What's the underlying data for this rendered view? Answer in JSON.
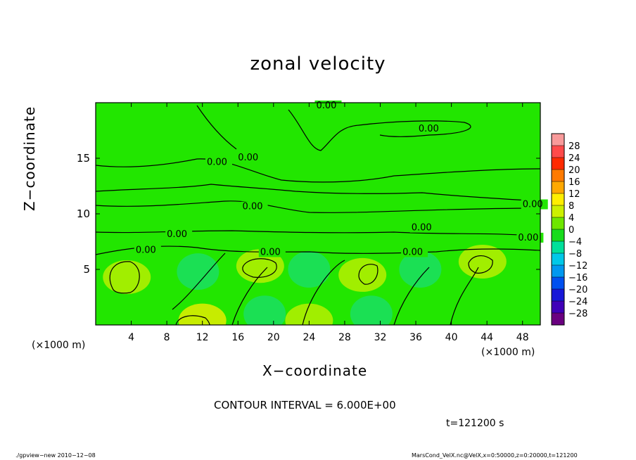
{
  "title": "zonal velocity",
  "x_label": "X−coordinate",
  "y_label": "Z−coordinate",
  "x_unit_left": "(×1000 m)",
  "x_unit_right": "(×1000 m)",
  "contour_interval": "CONTOUR INTERVAL = 6.000E+00",
  "time_label": "t=121200 s",
  "footer_left": "./gpview−new  2010−12−08",
  "footer_right": "MarsCond_VelX.nc@VelX,x=0:50000,z=0:20000,t=121200",
  "chart_data": {
    "type": "heatmap",
    "title": "zonal velocity",
    "xlabel": "X−coordinate",
    "ylabel": "Z−coordinate",
    "xlim": [
      0,
      50
    ],
    "ylim": [
      0,
      20
    ],
    "x_ticks": [
      "4",
      "8",
      "12",
      "16",
      "20",
      "24",
      "28",
      "32",
      "36",
      "40",
      "44",
      "48"
    ],
    "x_tick_values": [
      4,
      8,
      12,
      16,
      20,
      24,
      28,
      32,
      36,
      40,
      44,
      48
    ],
    "y_ticks": [
      "5",
      "10",
      "15"
    ],
    "y_tick_values": [
      5,
      10,
      15
    ],
    "colorbar": {
      "labels": [
        "28",
        "24",
        "20",
        "16",
        "12",
        "8",
        "4",
        "0",
        "−4",
        "−8",
        "−12",
        "−16",
        "−20",
        "−24",
        "−28"
      ],
      "levels": [
        28,
        24,
        20,
        16,
        12,
        8,
        4,
        0,
        -4,
        -8,
        -12,
        -16,
        -20,
        -24,
        -28
      ],
      "colors": [
        "#f89a9a",
        "#ff4a4a",
        "#ff2a00",
        "#ff7a00",
        "#ffa800",
        "#ffee00",
        "#ccf000",
        "#6ee600",
        "#18dc1c",
        "#00e09a",
        "#00c8e8",
        "#0098f0",
        "#0050f0",
        "#1818d8",
        "#4000b8",
        "#6a0080"
      ]
    },
    "contour_labels": [
      {
        "text": "0.00",
        "x": 24.8,
        "y": 19.5
      },
      {
        "text": "0.00",
        "x": 36.3,
        "y": 17.4
      },
      {
        "text": "0.00",
        "x": 12.5,
        "y": 14.4
      },
      {
        "text": "0.00",
        "x": 16.0,
        "y": 14.8
      },
      {
        "text": "0.00",
        "x": 16.5,
        "y": 10.4
      },
      {
        "text": "0.00",
        "x": 48.0,
        "y": 10.6
      },
      {
        "text": "0.00",
        "x": 8.0,
        "y": 7.9
      },
      {
        "text": "0.00",
        "x": 35.5,
        "y": 8.5
      },
      {
        "text": "0.00",
        "x": 47.5,
        "y": 7.6
      },
      {
        "text": "0.00",
        "x": 4.5,
        "y": 6.5
      },
      {
        "text": "0.00",
        "x": 18.5,
        "y": 6.3
      },
      {
        "text": "0.00",
        "x": 34.5,
        "y": 6.3
      }
    ],
    "warm_regions": [
      {
        "x": 3.5,
        "y": 4.3,
        "value": 6
      },
      {
        "x": 18.5,
        "y": 5.3,
        "value": 7
      },
      {
        "x": 30.0,
        "y": 4.5,
        "value": 5
      },
      {
        "x": 43.5,
        "y": 5.7,
        "value": 6
      },
      {
        "x": 12.0,
        "y": 0.4,
        "value": 9
      },
      {
        "x": 24.0,
        "y": 0.4,
        "value": 7
      }
    ],
    "cool_regions": [
      {
        "x": 11.5,
        "y": 4.8,
        "value": -6
      },
      {
        "x": 24.0,
        "y": 5.0,
        "value": -6
      },
      {
        "x": 36.5,
        "y": 5.0,
        "value": -6
      },
      {
        "x": 19.0,
        "y": 1.0,
        "value": -5
      },
      {
        "x": 31.0,
        "y": 1.0,
        "value": -5
      }
    ]
  }
}
